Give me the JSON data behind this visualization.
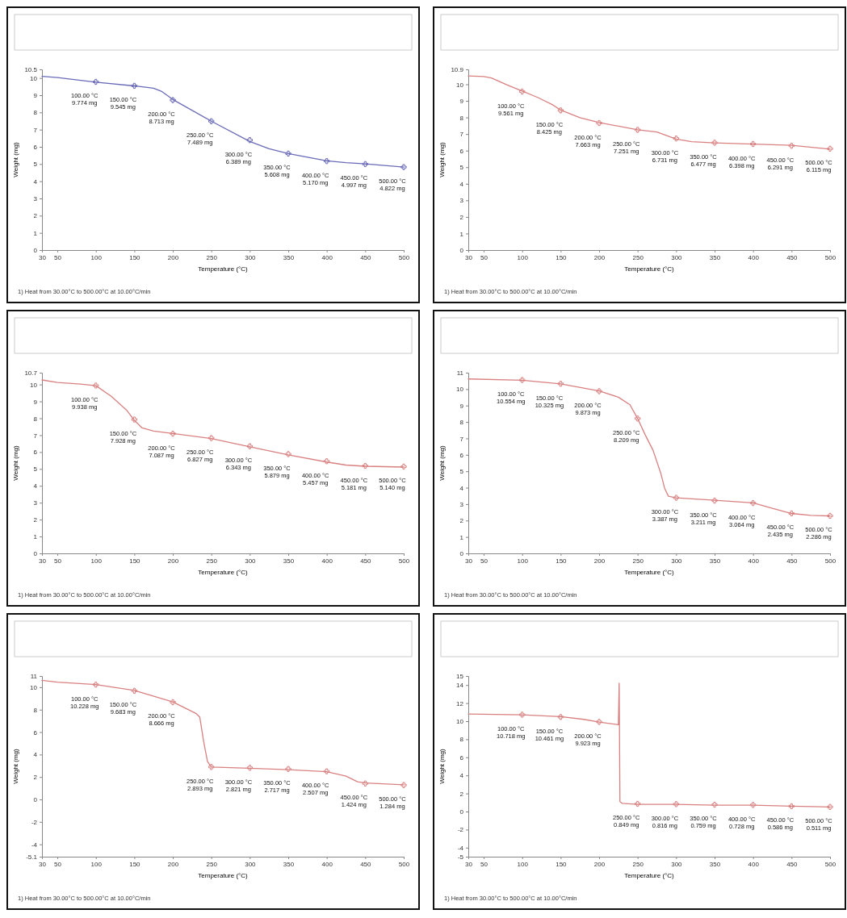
{
  "chart_data": [
    {
      "type": "line",
      "xlabel": "Temperature (°C)",
      "ylabel": "Weight (mg)",
      "annotations": [
        "1) Heat from 30.00°C to 500.00°C at 10.00°C/min"
      ],
      "xlim": [
        30,
        500
      ],
      "xticks": [
        30,
        50,
        100,
        150,
        200,
        250,
        300,
        350,
        400,
        450,
        500
      ],
      "ylim": [
        0,
        10.5
      ],
      "yticks": [
        0,
        1,
        2,
        3,
        4,
        5,
        6,
        7,
        8,
        9,
        10,
        10.5
      ],
      "series": [
        {
          "color": "#6a6ab8",
          "x": [
            30,
            50,
            100,
            150,
            175,
            185,
            200,
            250,
            300,
            325,
            350,
            400,
            425,
            450,
            500
          ],
          "values": [
            10.1,
            10.03,
            9.76,
            9.54,
            9.4,
            9.23,
            8.75,
            7.49,
            6.31,
            5.89,
            5.61,
            5.19,
            5.08,
            5.01,
            4.82
          ]
        },
        {
          "type": "scatter",
          "marker": "cross",
          "color": "#6a6ab8",
          "x": [
            100,
            150,
            200,
            250,
            300,
            350,
            400,
            450,
            500
          ],
          "values": [
            9.774,
            9.545,
            8.713,
            7.489,
            6.389,
            5.608,
            5.17,
            4.997,
            4.822
          ],
          "value_labels": [
            "100.00 °C\n9.774 mg",
            "150.00 °C\n9.545 mg",
            "200.00 °C\n8.713 mg",
            "250.00 °C\n7.489 mg",
            "300.00 °C\n6.389 mg",
            "350.00 °C\n5.608 mg",
            "400.00 °C\n5.170 mg",
            "450.00 °C\n4.997 mg",
            "500.00 °C\n4.822 mg"
          ]
        }
      ]
    },
    {
      "type": "line",
      "xlabel": "Temperature (°C)",
      "ylabel": "Weight (mg)",
      "annotations": [
        "1) Heat from 30.00°C to 500.00°C at 10.00°C/min"
      ],
      "xlim": [
        30,
        500
      ],
      "xticks": [
        30,
        50,
        100,
        150,
        200,
        250,
        300,
        350,
        400,
        450,
        500
      ],
      "ylim": [
        0,
        10.9
      ],
      "yticks": [
        0,
        1,
        2,
        3,
        4,
        5,
        6,
        7,
        8,
        9,
        10,
        10.9
      ],
      "series": [
        {
          "color": "#d98080",
          "x": [
            30,
            50,
            60,
            80,
            100,
            120,
            140,
            150,
            175,
            200,
            250,
            275,
            300,
            320,
            350,
            400,
            450,
            500
          ],
          "values": [
            10.5,
            10.47,
            10.38,
            9.97,
            9.59,
            9.21,
            8.75,
            8.45,
            7.99,
            7.69,
            7.26,
            7.12,
            6.7,
            6.54,
            6.47,
            6.39,
            6.32,
            6.09
          ]
        },
        {
          "type": "scatter",
          "marker": "cross",
          "color": "#d98080",
          "x": [
            100,
            150,
            200,
            250,
            300,
            350,
            400,
            450,
            500
          ],
          "values": [
            9.561,
            8.425,
            7.663,
            7.251,
            6.731,
            6.477,
            6.398,
            6.291,
            6.115
          ],
          "value_labels": [
            "100.00 °C\n9.561 mg",
            "150.00 °C\n8.425 mg",
            "200.00 °C\n7.663 mg",
            "250.00 °C\n7.251 mg",
            "300.00 °C\n6.731 mg",
            "350.00 °C\n6.477 mg",
            "400.00 °C\n6.398 mg",
            "450.00 °C\n6.291 mg",
            "500.00 °C\n6.115 mg"
          ]
        }
      ]
    },
    {
      "type": "line",
      "xlabel": "Temperature (°C)",
      "ylabel": "Weight (mg)",
      "annotations": [
        "1) Heat from 30.00°C to 500.00°C at 10.00°C/min"
      ],
      "xlim": [
        30,
        500
      ],
      "xticks": [
        30,
        50,
        100,
        150,
        200,
        250,
        300,
        350,
        400,
        450,
        500
      ],
      "ylim": [
        0,
        10.7
      ],
      "yticks": [
        0,
        1,
        2,
        3,
        4,
        5,
        6,
        7,
        8,
        9,
        10,
        10.7
      ],
      "series": [
        {
          "color": "#d98080",
          "x": [
            30,
            50,
            80,
            100,
            120,
            140,
            150,
            160,
            175,
            200,
            250,
            300,
            350,
            400,
            425,
            450,
            500
          ],
          "values": [
            10.27,
            10.12,
            10.03,
            9.93,
            9.3,
            8.48,
            7.88,
            7.43,
            7.24,
            7.1,
            6.8,
            6.31,
            5.83,
            5.41,
            5.23,
            5.16,
            5.11
          ]
        },
        {
          "type": "scatter",
          "marker": "cross",
          "color": "#d98080",
          "x": [
            100,
            150,
            200,
            250,
            300,
            350,
            400,
            450,
            500
          ],
          "values": [
            9.938,
            7.928,
            7.087,
            6.827,
            6.343,
            5.879,
            5.457,
            5.181,
            5.14
          ],
          "value_labels": [
            "100.00 °C\n9.938 mg",
            "150.00 °C\n7.928 mg",
            "200.00 °C\n7.087 mg",
            "250.00 °C\n6.827 mg",
            "300.00 °C\n6.343 mg",
            "350.00 °C\n5.879 mg",
            "400.00 °C\n5.457 mg",
            "450.00 °C\n5.181 mg",
            "500.00 °C\n5.140 mg"
          ]
        }
      ]
    },
    {
      "type": "line",
      "xlabel": "Temperature (°C)",
      "ylabel": "Weight (mg)",
      "annotations": [
        "1) Heat from 30.00°C to 500.00°C at 10.00°C/min"
      ],
      "xlim": [
        30,
        500
      ],
      "xticks": [
        30,
        50,
        100,
        150,
        200,
        250,
        300,
        350,
        400,
        450,
        500
      ],
      "ylim": [
        0,
        11
      ],
      "yticks": [
        0,
        1,
        2,
        3,
        4,
        5,
        6,
        7,
        8,
        9,
        10,
        11
      ],
      "series": [
        {
          "color": "#d98080",
          "x": [
            30,
            100,
            150,
            200,
            225,
            240,
            250,
            260,
            270,
            280,
            285,
            290,
            300,
            350,
            400,
            425,
            450,
            475,
            500
          ],
          "values": [
            10.62,
            10.54,
            10.32,
            9.89,
            9.51,
            9.05,
            8.21,
            7.2,
            6.28,
            4.89,
            3.97,
            3.48,
            3.38,
            3.23,
            3.08,
            2.74,
            2.43,
            2.31,
            2.28
          ]
        },
        {
          "type": "scatter",
          "marker": "cross",
          "color": "#d98080",
          "x": [
            100,
            150,
            200,
            250,
            300,
            350,
            400,
            450,
            500
          ],
          "values": [
            10.554,
            10.325,
            9.873,
            8.209,
            3.387,
            3.211,
            3.064,
            2.435,
            2.286
          ],
          "value_labels": [
            "100.00 °C\n10.554 mg",
            "150.00 °C\n10.325 mg",
            "200.00 °C\n9.873 mg",
            "250.00 °C\n8.209 mg",
            "300.00 °C\n3.387 mg",
            "350.00 °C\n3.211 mg",
            "400.00 °C\n3.064 mg",
            "450.00 °C\n2.435 mg",
            "500.00 °C\n2.286 mg"
          ]
        }
      ]
    },
    {
      "type": "line",
      "xlabel": "Temperature (°C)",
      "ylabel": "Weight (mg)",
      "annotations": [
        "1) Heat from 30.00°C to 500.00°C at 10.00°C/min"
      ],
      "xlim": [
        30,
        500
      ],
      "xticks": [
        30,
        50,
        100,
        150,
        200,
        250,
        300,
        350,
        400,
        450,
        500
      ],
      "ylim": [
        -5.1,
        11
      ],
      "yticks": [
        -5.1,
        -4,
        -2,
        0,
        2,
        4,
        6,
        8,
        10,
        11
      ],
      "series": [
        {
          "color": "#d98080",
          "x": [
            30,
            50,
            100,
            150,
            200,
            230,
            235,
            240,
            245,
            250,
            300,
            350,
            400,
            425,
            440,
            450,
            500
          ],
          "values": [
            10.61,
            10.45,
            10.23,
            9.71,
            8.69,
            7.67,
            7.34,
            5.19,
            3.39,
            2.89,
            2.78,
            2.66,
            2.48,
            2.08,
            1.58,
            1.47,
            1.31
          ]
        },
        {
          "type": "scatter",
          "marker": "cross",
          "color": "#d98080",
          "x": [
            100,
            150,
            200,
            250,
            300,
            350,
            400,
            450,
            500
          ],
          "values": [
            10.228,
            9.683,
            8.666,
            2.893,
            2.821,
            2.717,
            2.507,
            1.424,
            1.284
          ],
          "value_labels": [
            "100.00 °C\n10.228 mg",
            "150.00 °C\n9.683 mg",
            "200.00 °C\n8.666 mg",
            "250.00 °C\n2.893 mg",
            "300.00 °C\n2.821 mg",
            "350.00 °C\n2.717 mg",
            "400.00 °C\n2.507 mg",
            "450.00 °C\n1.424 mg",
            "500.00 °C\n1.284 mg"
          ]
        }
      ]
    },
    {
      "type": "line",
      "xlabel": "Temperature (°C)",
      "ylabel": "Weight (mg)",
      "annotations": [
        "1) Heat from 30.00°C to 500.00°C at 10.00°C/min"
      ],
      "xlim": [
        30,
        500
      ],
      "xticks": [
        30,
        50,
        100,
        150,
        200,
        250,
        300,
        350,
        400,
        450,
        500
      ],
      "ylim": [
        -5,
        15
      ],
      "yticks": [
        -5,
        -4,
        -2,
        0,
        2,
        4,
        6,
        8,
        10,
        12,
        14,
        15
      ],
      "series": [
        {
          "color": "#d98080",
          "x": [
            30,
            100,
            150,
            180,
            200,
            225,
            226,
            227,
            230,
            250,
            300,
            350,
            400,
            450,
            500
          ],
          "values": [
            10.8,
            10.7,
            10.5,
            10.2,
            9.9,
            9.6,
            14.2,
            1.1,
            0.9,
            0.8,
            0.8,
            0.7,
            0.7,
            0.6,
            0.5
          ]
        },
        {
          "type": "scatter",
          "marker": "cross",
          "color": "#d98080",
          "x": [
            100,
            150,
            200,
            250,
            300,
            350,
            400,
            450,
            500
          ],
          "values": [
            10.718,
            10.461,
            9.923,
            0.849,
            0.816,
            0.759,
            0.728,
            0.586,
            0.511
          ],
          "value_labels": [
            "100.00 °C\n10.718 mg",
            "150.00 °C\n10.461 mg",
            "200.00 °C\n9.923 mg",
            "250.00 °C\n0.849 mg",
            "300.00 °C\n0.816 mg",
            "350.00 °C\n0.759 mg",
            "400.00 °C\n0.728 mg",
            "450.00 °C\n0.586 mg",
            "500.00 °C\n0.511 mg"
          ]
        }
      ]
    }
  ]
}
